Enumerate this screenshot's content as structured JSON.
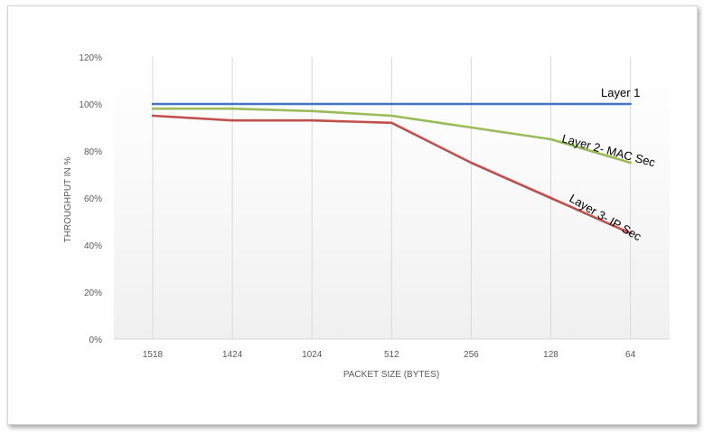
{
  "chart_data": {
    "type": "line",
    "title": "",
    "xlabel": "PACKET SIZE (BYTES)",
    "ylabel": "THROUGHPUT IN %",
    "categories": [
      "1518",
      "1424",
      "1024",
      "512",
      "256",
      "128",
      "64"
    ],
    "ylim": [
      0,
      120
    ],
    "yticks": [
      0,
      20,
      40,
      60,
      80,
      100,
      120
    ],
    "ytick_labels": [
      "0%",
      "20%",
      "40%",
      "60%",
      "80%",
      "100%",
      "120%"
    ],
    "grid": "vertical",
    "legend": "none",
    "series": [
      {
        "name": "Layer 1",
        "color": "#4472c4",
        "values": [
          100,
          100,
          100,
          100,
          100,
          100,
          100
        ]
      },
      {
        "name": "Layer 2- MAC Sec",
        "color": "#9bbb59",
        "values": [
          98,
          98,
          97,
          95,
          90,
          85,
          75
        ]
      },
      {
        "name": "Layer 3- IP Sec",
        "color": "#c0504d",
        "values": [
          95,
          93,
          93,
          92,
          75,
          60,
          45
        ]
      }
    ]
  }
}
